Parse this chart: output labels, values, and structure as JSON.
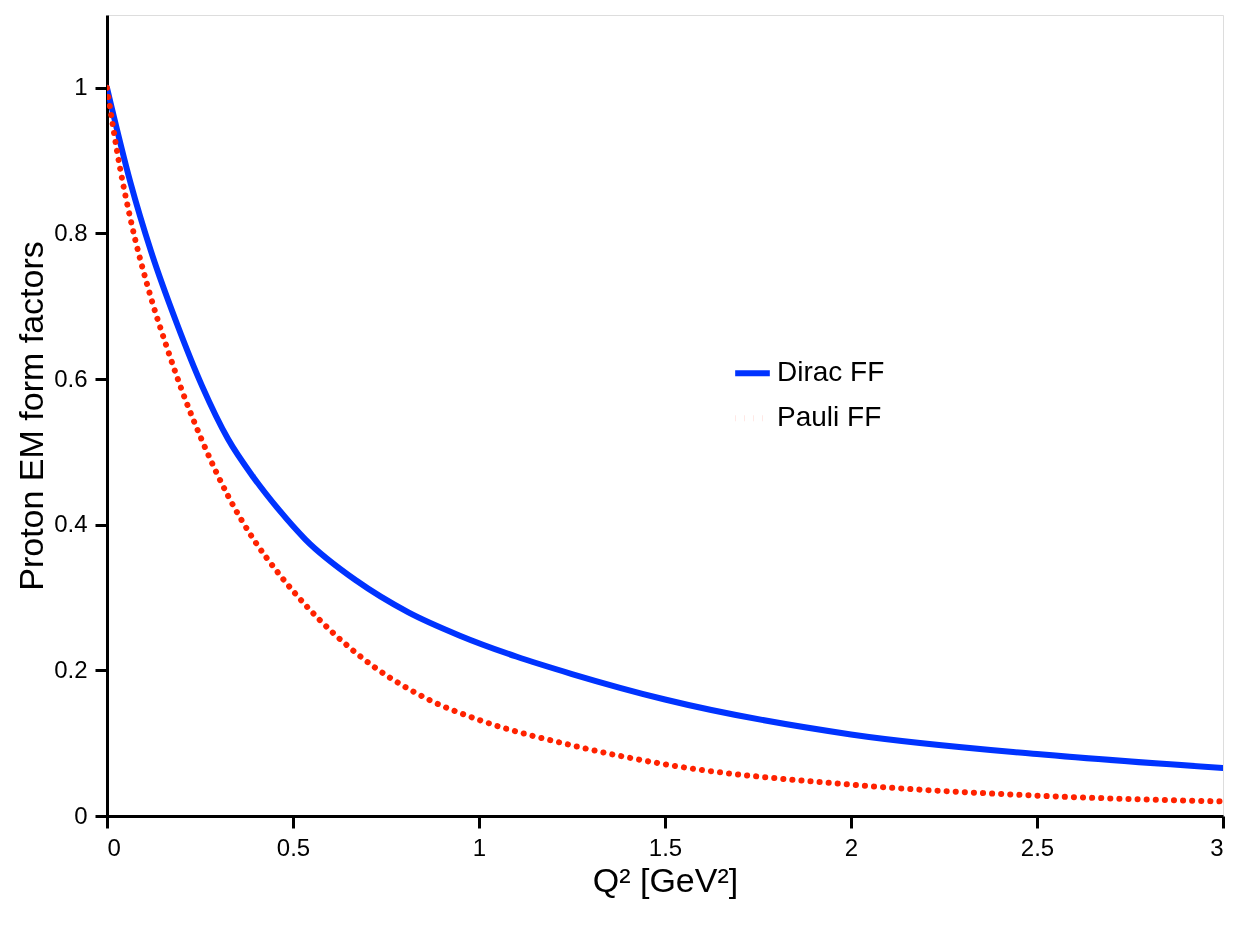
{
  "chart_data": {
    "type": "line",
    "xlabel": "Q² [GeV²]",
    "ylabel": "Proton EM form factors",
    "xlim": [
      0,
      3
    ],
    "ylim": [
      0,
      1.1
    ],
    "xticks": [
      0,
      0.5,
      1,
      1.5,
      2,
      2.5,
      3
    ],
    "yticks": [
      0,
      0.2,
      0.4,
      0.6,
      0.8,
      1
    ],
    "grid": false,
    "legend": "right",
    "marker": "none",
    "series": [
      {
        "name": "Dirac FF",
        "color": "#0033ff",
        "line_style": "solid",
        "x": [
          0,
          0.063,
          0.118,
          0.188,
          0.256,
          0.325,
          0.394,
          0.463,
          0.533,
          0.671,
          0.809,
          0.947,
          1.1,
          1.25,
          1.5,
          2,
          2.5,
          3
        ],
        "values": [
          1,
          0.87,
          0.776,
          0.676,
          0.59,
          0.518,
          0.465,
          0.42,
          0.38,
          0.323,
          0.28,
          0.248,
          0.219,
          0.195,
          0.16,
          0.112,
          0.085,
          0.066
        ]
      },
      {
        "name": "Pauli FF",
        "color": "#ff2200",
        "line_style": "dotted",
        "x": [
          0,
          0.035,
          0.063,
          0.118,
          0.16,
          0.201,
          0.256,
          0.325,
          0.394,
          0.463,
          0.533,
          0.674,
          0.864,
          1,
          1.25,
          1.5,
          2,
          2.5,
          3
        ],
        "values": [
          1,
          0.89,
          0.82,
          0.712,
          0.645,
          0.585,
          0.515,
          0.44,
          0.38,
          0.332,
          0.29,
          0.222,
          0.16,
          0.132,
          0.097,
          0.071,
          0.043,
          0.028,
          0.02
        ]
      }
    ]
  }
}
